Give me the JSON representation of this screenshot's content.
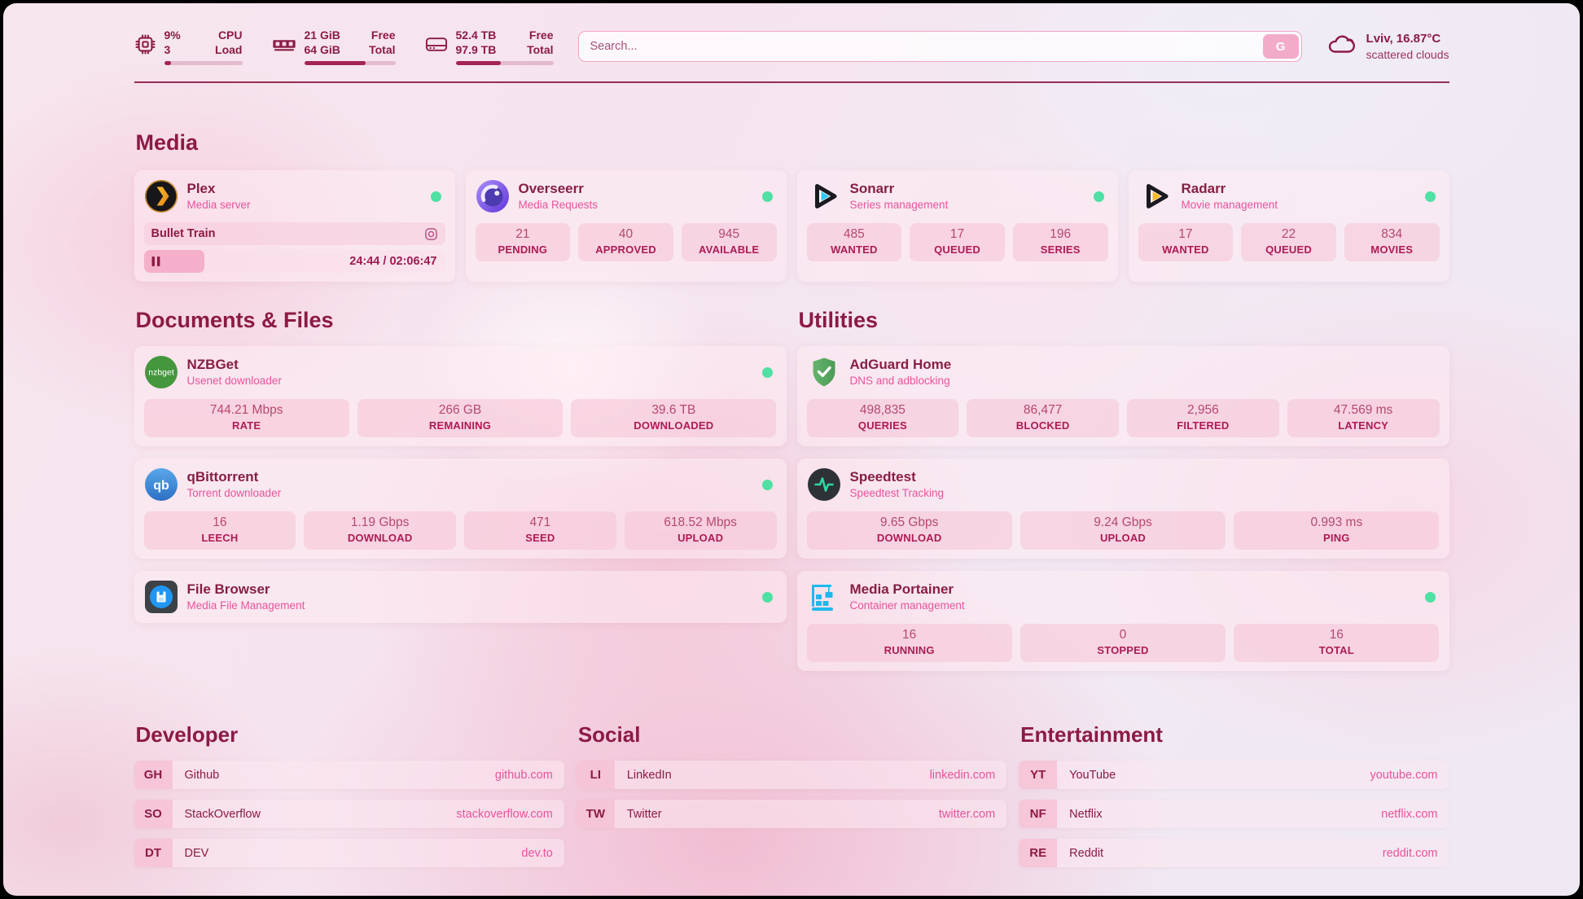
{
  "colors": {
    "accent": "#8c1a45",
    "subtitle": "#e7539c",
    "url": "#e7539c",
    "status_online": "#4fe0a3"
  },
  "header": {
    "cpu": {
      "value": "9%",
      "cores": "3",
      "label_top": "CPU",
      "label_bottom": "Load",
      "percent": 9
    },
    "ram": {
      "free": "21 GiB",
      "total": "64 GiB",
      "label_top": "Free",
      "label_bottom": "Total",
      "percent": 67
    },
    "disk": {
      "free": "52.4 TB",
      "total": "97.9 TB",
      "label_top": "Free",
      "label_bottom": "Total",
      "percent": 46
    },
    "search": {
      "placeholder": "Search...",
      "button_label": "G"
    },
    "weather": {
      "location": "Lviv, 16.87°C",
      "condition": "scattered clouds"
    }
  },
  "sections": {
    "media": {
      "title": "Media",
      "plex": {
        "name": "Plex",
        "subtitle": "Media server",
        "now_playing": "Bullet Train",
        "time": "24:44 / 02:06:47",
        "progress_percent": 20
      },
      "overseerr": {
        "name": "Overseerr",
        "subtitle": "Media Requests",
        "stats": [
          {
            "value": "21",
            "label": "PENDING"
          },
          {
            "value": "40",
            "label": "APPROVED"
          },
          {
            "value": "945",
            "label": "AVAILABLE"
          }
        ]
      },
      "sonarr": {
        "name": "Sonarr",
        "subtitle": "Series management",
        "stats": [
          {
            "value": "485",
            "label": "WANTED"
          },
          {
            "value": "17",
            "label": "QUEUED"
          },
          {
            "value": "196",
            "label": "SERIES"
          }
        ]
      },
      "radarr": {
        "name": "Radarr",
        "subtitle": "Movie management",
        "stats": [
          {
            "value": "17",
            "label": "WANTED"
          },
          {
            "value": "22",
            "label": "QUEUED"
          },
          {
            "value": "834",
            "label": "MOVIES"
          }
        ]
      }
    },
    "documents": {
      "title": "Documents & Files",
      "nzbget": {
        "name": "NZBGet",
        "subtitle": "Usenet downloader",
        "icon_text": "nzbget",
        "stats": [
          {
            "value": "744.21 Mbps",
            "label": "RATE"
          },
          {
            "value": "266 GB",
            "label": "REMAINING"
          },
          {
            "value": "39.6 TB",
            "label": "DOWNLOADED"
          }
        ]
      },
      "qbittorrent": {
        "name": "qBittorrent",
        "subtitle": "Torrent downloader",
        "icon_text": "qb",
        "stats": [
          {
            "value": "16",
            "label": "LEECH"
          },
          {
            "value": "1.19 Gbps",
            "label": "DOWNLOAD"
          },
          {
            "value": "471",
            "label": "SEED"
          },
          {
            "value": "618.52 Mbps",
            "label": "UPLOAD"
          }
        ]
      },
      "filebrowser": {
        "name": "File Browser",
        "subtitle": "Media File Management"
      }
    },
    "utilities": {
      "title": "Utilities",
      "adguard": {
        "name": "AdGuard Home",
        "subtitle": "DNS and adblocking",
        "stats": [
          {
            "value": "498,835",
            "label": "QUERIES"
          },
          {
            "value": "86,477",
            "label": "BLOCKED"
          },
          {
            "value": "2,956",
            "label": "FILTERED"
          },
          {
            "value": "47.569 ms",
            "label": "LATENCY"
          }
        ]
      },
      "speedtest": {
        "name": "Speedtest",
        "subtitle": "Speedtest Tracking",
        "stats": [
          {
            "value": "9.65 Gbps",
            "label": "DOWNLOAD"
          },
          {
            "value": "9.24 Gbps",
            "label": "UPLOAD"
          },
          {
            "value": "0.993 ms",
            "label": "PING"
          }
        ]
      },
      "portainer": {
        "name": "Media Portainer",
        "subtitle": "Container management",
        "stats": [
          {
            "value": "16",
            "label": "RUNNING"
          },
          {
            "value": "0",
            "label": "STOPPED"
          },
          {
            "value": "16",
            "label": "TOTAL"
          }
        ]
      }
    }
  },
  "links": {
    "developer": {
      "title": "Developer",
      "items": [
        {
          "abbr": "GH",
          "name": "Github",
          "url": "github.com"
        },
        {
          "abbr": "SO",
          "name": "StackOverflow",
          "url": "stackoverflow.com"
        },
        {
          "abbr": "DT",
          "name": "DEV",
          "url": "dev.to"
        }
      ]
    },
    "social": {
      "title": "Social",
      "items": [
        {
          "abbr": "LI",
          "name": "LinkedIn",
          "url": "linkedin.com"
        },
        {
          "abbr": "TW",
          "name": "Twitter",
          "url": "twitter.com"
        }
      ]
    },
    "entertainment": {
      "title": "Entertainment",
      "items": [
        {
          "abbr": "YT",
          "name": "YouTube",
          "url": "youtube.com"
        },
        {
          "abbr": "NF",
          "name": "Netflix",
          "url": "netflix.com"
        },
        {
          "abbr": "RE",
          "name": "Reddit",
          "url": "reddit.com"
        }
      ]
    }
  }
}
